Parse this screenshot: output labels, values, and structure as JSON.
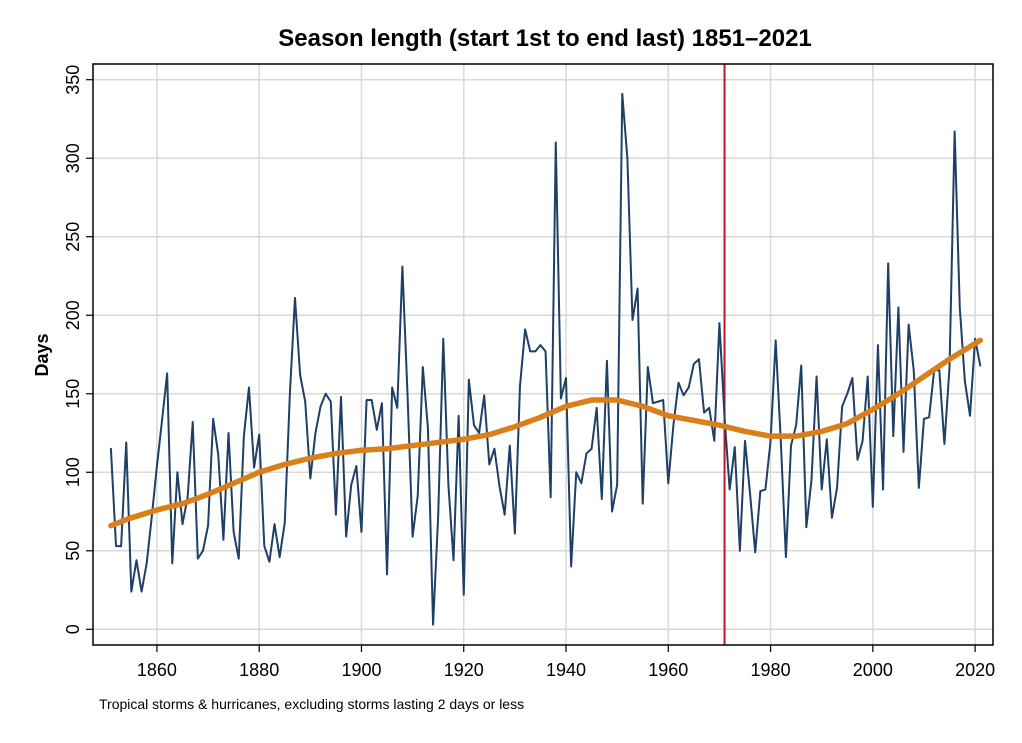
{
  "chart_data": {
    "type": "line",
    "title": "Season length (start 1st to end last) 1851–2021",
    "ylabel": "Days",
    "note": "Tropical storms & hurricanes, excluding storms lasting 2 days or less",
    "xlim": [
      1847.5,
      2023.5
    ],
    "ylim": [
      -10,
      360
    ],
    "xticks": [
      1860,
      1880,
      1900,
      1920,
      1940,
      1960,
      1980,
      2000,
      2020
    ],
    "yticks": [
      0,
      50,
      100,
      150,
      200,
      250,
      300,
      350
    ],
    "grid": true,
    "reference_x": 1971,
    "reference_color": "#c0142a",
    "series": [
      {
        "color": "#1f3f66",
        "width": 2,
        "x": [
          1851,
          1852,
          1853,
          1854,
          1855,
          1856,
          1857,
          1858,
          1859,
          1860,
          1861,
          1862,
          1863,
          1864,
          1865,
          1866,
          1867,
          1868,
          1869,
          1870,
          1871,
          1872,
          1873,
          1874,
          1875,
          1876,
          1877,
          1878,
          1879,
          1880,
          1881,
          1882,
          1883,
          1884,
          1885,
          1886,
          1887,
          1888,
          1889,
          1890,
          1891,
          1892,
          1893,
          1894,
          1895,
          1896,
          1897,
          1898,
          1899,
          1900,
          1901,
          1902,
          1903,
          1904,
          1905,
          1906,
          1907,
          1908,
          1909,
          1910,
          1911,
          1912,
          1913,
          1914,
          1915,
          1916,
          1917,
          1918,
          1919,
          1920,
          1921,
          1922,
          1923,
          1924,
          1925,
          1926,
          1927,
          1928,
          1929,
          1930,
          1931,
          1932,
          1933,
          1934,
          1935,
          1936,
          1937,
          1938,
          1939,
          1940,
          1941,
          1942,
          1943,
          1944,
          1945,
          1946,
          1947,
          1948,
          1949,
          1950,
          1951,
          1952,
          1953,
          1954,
          1955,
          1956,
          1957,
          1958,
          1959,
          1960,
          1961,
          1962,
          1963,
          1964,
          1965,
          1966,
          1967,
          1968,
          1969,
          1970,
          1971,
          1972,
          1973,
          1974,
          1975,
          1976,
          1977,
          1978,
          1979,
          1980,
          1981,
          1982,
          1983,
          1984,
          1985,
          1986,
          1987,
          1988,
          1989,
          1990,
          1991,
          1992,
          1993,
          1994,
          1995,
          1996,
          1997,
          1998,
          1999,
          2000,
          2001,
          2002,
          2003,
          2004,
          2005,
          2006,
          2007,
          2008,
          2009,
          2010,
          2011,
          2012,
          2013,
          2014,
          2015,
          2016,
          2017,
          2018,
          2019,
          2020,
          2021
        ],
        "values": [
          115,
          53,
          53,
          119,
          24,
          44,
          24,
          42,
          72,
          104,
          133,
          163,
          42,
          100,
          67,
          84,
          132,
          45,
          50,
          66,
          134,
          111,
          57,
          125,
          62,
          45,
          123,
          154,
          103,
          124,
          53,
          43,
          67,
          46,
          68,
          150,
          211,
          162,
          145,
          96,
          125,
          142,
          150,
          145,
          73,
          148,
          59,
          92,
          104,
          62,
          146,
          146,
          127,
          144,
          35,
          154,
          141,
          231,
          150,
          59,
          85,
          167,
          128,
          3,
          72,
          185,
          92,
          44,
          136,
          22,
          159,
          130,
          125,
          149,
          105,
          115,
          91,
          73,
          117,
          61,
          155,
          191,
          177,
          177,
          181,
          177,
          84,
          310,
          147,
          160,
          40,
          100,
          93,
          112,
          115,
          141,
          83,
          171,
          75,
          92,
          341,
          300,
          197,
          217,
          80,
          167,
          144,
          145,
          146,
          93,
          130,
          157,
          149,
          154,
          169,
          172,
          138,
          141,
          120,
          195,
          135,
          89,
          116,
          50,
          120,
          86,
          49,
          88,
          89,
          120,
          184,
          120,
          46,
          117,
          130,
          168,
          65,
          95,
          161,
          89,
          121,
          71,
          90,
          142,
          150,
          160,
          108,
          120,
          161,
          78,
          181,
          89,
          233,
          123,
          205,
          113,
          194,
          165,
          90,
          134,
          135,
          165,
          165,
          118,
          167,
          317,
          205,
          158,
          136,
          185,
          168
        ]
      },
      {
        "color": "#d9801a",
        "width": 5.5,
        "x": [
          1851,
          1855,
          1860,
          1865,
          1870,
          1875,
          1880,
          1885,
          1890,
          1895,
          1900,
          1905,
          1910,
          1915,
          1920,
          1925,
          1930,
          1935,
          1940,
          1945,
          1950,
          1955,
          1960,
          1965,
          1970,
          1975,
          1980,
          1985,
          1990,
          1995,
          2000,
          2005,
          2010,
          2015,
          2021
        ],
        "values": [
          66,
          71,
          76,
          80,
          86,
          93,
          100,
          105,
          109,
          112,
          114,
          115,
          117,
          119,
          121,
          124,
          129,
          135,
          142,
          146,
          146,
          142,
          136,
          133,
          130,
          126,
          123,
          123,
          126,
          131,
          140,
          150,
          161,
          172,
          184
        ]
      }
    ]
  }
}
